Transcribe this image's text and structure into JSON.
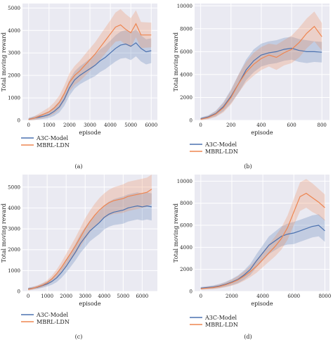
{
  "colors": {
    "a3c": "#4c72b0",
    "mbrl": "#ee8550",
    "panel_bg": "#eaeaf2",
    "grid": "#ffffff"
  },
  "chart_data": [
    {
      "type": "line",
      "caption": "(a)",
      "xlabel": "episode",
      "ylabel": "Total moving reward",
      "xlim": [
        -300,
        6300
      ],
      "ylim": [
        0,
        5200
      ],
      "xticks": [
        0,
        1000,
        2000,
        3000,
        4000,
        5000,
        6000
      ],
      "yticks": [
        0,
        1000,
        2000,
        3000,
        4000,
        5000
      ],
      "grid": true,
      "legend_placement": "below",
      "series": [
        {
          "name": "A3C-Model",
          "x": [
            0,
            250,
            500,
            750,
            1000,
            1250,
            1500,
            1750,
            2000,
            2250,
            2500,
            2750,
            3000,
            3250,
            3500,
            3750,
            4000,
            4250,
            4500,
            4750,
            5000,
            5250,
            5500,
            5750,
            6000
          ],
          "values": [
            50,
            100,
            140,
            190,
            260,
            400,
            600,
            950,
            1450,
            1800,
            2000,
            2150,
            2300,
            2450,
            2650,
            2800,
            3000,
            3200,
            3350,
            3400,
            3300,
            3450,
            3200,
            3050,
            3100
          ],
          "band": [
            60,
            80,
            100,
            120,
            150,
            200,
            250,
            300,
            350,
            380,
            400,
            420,
            450,
            480,
            500,
            520,
            550,
            580,
            600,
            620,
            620,
            600,
            580,
            560,
            550
          ]
        },
        {
          "name": "MBRL-LDN",
          "x": [
            0,
            250,
            500,
            750,
            1000,
            1250,
            1500,
            1750,
            2000,
            2250,
            2500,
            2750,
            3000,
            3250,
            3500,
            3750,
            4000,
            4250,
            4500,
            4750,
            5000,
            5250,
            5500,
            5750,
            6000
          ],
          "values": [
            40,
            90,
            180,
            280,
            380,
            550,
            800,
            1200,
            1700,
            2000,
            2200,
            2450,
            2700,
            2950,
            3250,
            3550,
            3850,
            4150,
            4250,
            4050,
            3900,
            4300,
            3800,
            3800,
            3800
          ],
          "band": [
            60,
            80,
            120,
            160,
            200,
            250,
            300,
            350,
            400,
            420,
            450,
            480,
            500,
            520,
            550,
            580,
            600,
            650,
            700,
            680,
            650,
            600,
            580,
            560,
            550
          ]
        }
      ]
    },
    {
      "type": "line",
      "caption": "(b)",
      "xlabel": "episode",
      "ylabel": "Total moving reward",
      "xlim": [
        -40,
        850
      ],
      "ylim": [
        0,
        10200
      ],
      "xticks": [
        0,
        200,
        400,
        600,
        800
      ],
      "yticks": [
        0,
        2000,
        4000,
        6000,
        8000,
        10000
      ],
      "grid": true,
      "legend_placement": "below",
      "series": [
        {
          "name": "A3C-Model",
          "x": [
            0,
            50,
            100,
            150,
            200,
            250,
            300,
            350,
            400,
            450,
            500,
            550,
            600,
            650,
            700,
            750,
            800
          ],
          "values": [
            150,
            300,
            600,
            1200,
            2100,
            3200,
            4400,
            5200,
            5700,
            5900,
            6000,
            6200,
            6300,
            6100,
            6000,
            6000,
            5950
          ],
          "band": [
            100,
            150,
            250,
            400,
            600,
            800,
            900,
            1000,
            1000,
            1000,
            1000,
            1000,
            1000,
            1000,
            1000,
            900,
            900
          ]
        },
        {
          "name": "MBRL-LDN",
          "x": [
            0,
            50,
            100,
            150,
            200,
            250,
            300,
            350,
            400,
            450,
            500,
            550,
            600,
            650,
            700,
            750,
            800
          ],
          "values": [
            100,
            250,
            550,
            1100,
            2000,
            3200,
            4200,
            4900,
            5400,
            5700,
            5500,
            5900,
            6200,
            6800,
            7600,
            8200,
            7300
          ],
          "band": [
            100,
            150,
            250,
            400,
            600,
            800,
            900,
            1000,
            1000,
            1000,
            1100,
            1100,
            1200,
            1300,
            1300,
            1300,
            1200
          ]
        }
      ]
    },
    {
      "type": "line",
      "caption": "(c)",
      "xlabel": "episode",
      "ylabel": "Total moving reward",
      "xlim": [
        -300,
        6800
      ],
      "ylim": [
        0,
        5600
      ],
      "xticks": [
        0,
        1000,
        2000,
        3000,
        4000,
        5000,
        6000
      ],
      "yticks": [
        0,
        1000,
        2000,
        3000,
        4000,
        5000
      ],
      "grid": true,
      "legend_placement": "below",
      "series": [
        {
          "name": "A3C-Model",
          "x": [
            0,
            250,
            500,
            750,
            1000,
            1250,
            1500,
            1750,
            2000,
            2250,
            2500,
            2750,
            3000,
            3250,
            3500,
            3750,
            4000,
            4250,
            4500,
            4750,
            5000,
            5250,
            5500,
            5750,
            6000,
            6250,
            6500
          ],
          "values": [
            120,
            160,
            200,
            280,
            360,
            480,
            650,
            900,
            1200,
            1550,
            1900,
            2300,
            2600,
            2900,
            3100,
            3300,
            3550,
            3700,
            3800,
            3850,
            3900,
            4000,
            4050,
            4100,
            4050,
            4100,
            4050
          ],
          "band": [
            60,
            70,
            80,
            100,
            120,
            160,
            200,
            250,
            300,
            350,
            400,
            450,
            480,
            500,
            520,
            550,
            580,
            600,
            620,
            640,
            650,
            650,
            650,
            650,
            650,
            650,
            650
          ]
        },
        {
          "name": "MBRL-LDN",
          "x": [
            0,
            250,
            500,
            750,
            1000,
            1250,
            1500,
            1750,
            2000,
            2250,
            2500,
            2750,
            3000,
            3250,
            3500,
            3750,
            4000,
            4250,
            4500,
            4750,
            5000,
            5250,
            5500,
            5750,
            6000,
            6250,
            6500
          ],
          "values": [
            100,
            150,
            220,
            300,
            420,
            600,
            850,
            1150,
            1500,
            1850,
            2200,
            2600,
            3000,
            3350,
            3650,
            3900,
            4100,
            4250,
            4350,
            4400,
            4450,
            4550,
            4600,
            4650,
            4700,
            4750,
            4900
          ],
          "band": [
            60,
            70,
            80,
            100,
            120,
            160,
            200,
            250,
            300,
            350,
            400,
            450,
            500,
            520,
            550,
            580,
            600,
            620,
            640,
            660,
            680,
            700,
            700,
            700,
            700,
            700,
            700
          ]
        }
      ]
    },
    {
      "type": "line",
      "caption": "(d)",
      "xlabel": "episode",
      "ylabel": "Total moving reward",
      "xlim": [
        -400,
        8300
      ],
      "ylim": [
        0,
        10600
      ],
      "xticks": [
        0,
        2000,
        4000,
        6000,
        8000
      ],
      "yticks": [
        0,
        2000,
        4000,
        6000,
        8000,
        10000
      ],
      "grid": true,
      "legend_placement": "below",
      "series": [
        {
          "name": "A3C-Model",
          "x": [
            0,
            400,
            800,
            1200,
            1600,
            2000,
            2400,
            2800,
            3200,
            3600,
            4000,
            4400,
            4800,
            5200,
            5600,
            6000,
            6400,
            6800,
            7200,
            7600,
            8000
          ],
          "values": [
            300,
            350,
            400,
            500,
            650,
            850,
            1100,
            1500,
            2000,
            2800,
            3500,
            4200,
            4600,
            5000,
            5200,
            5300,
            5500,
            5700,
            5900,
            6000,
            5500
          ],
          "band": [
            100,
            120,
            150,
            180,
            220,
            280,
            350,
            420,
            500,
            600,
            700,
            800,
            850,
            900,
            950,
            1000,
            1000,
            1000,
            1000,
            1000,
            1000
          ]
        },
        {
          "name": "MBRL-LDN",
          "x": [
            0,
            400,
            800,
            1200,
            1600,
            2000,
            2400,
            2800,
            3200,
            3600,
            4000,
            4400,
            4800,
            5200,
            5600,
            6000,
            6400,
            6800,
            7200,
            7600,
            8000
          ],
          "values": [
            250,
            300,
            350,
            450,
            600,
            800,
            1050,
            1400,
            1800,
            2300,
            2900,
            3500,
            4100,
            4800,
            5800,
            7200,
            8600,
            8900,
            8500,
            8100,
            7600
          ],
          "band": [
            100,
            120,
            150,
            180,
            220,
            280,
            350,
            420,
            500,
            600,
            700,
            800,
            900,
            1000,
            1100,
            1200,
            1300,
            1300,
            1300,
            1200,
            1200
          ]
        }
      ]
    }
  ]
}
